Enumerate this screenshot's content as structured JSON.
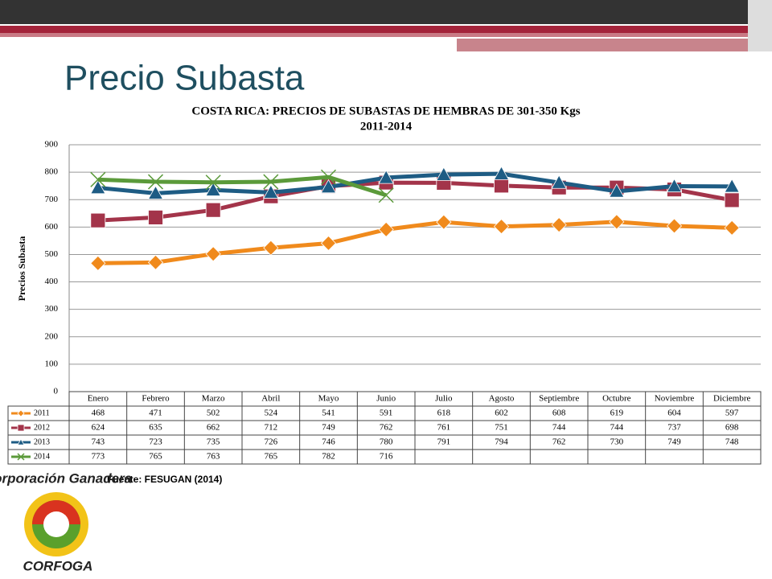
{
  "slide_title": "Precio Subasta",
  "source": "Fuente: FESUGAN (2014)",
  "logo": {
    "top": "Corporación Ganadera",
    "bottom": "CORFOGA"
  },
  "chart_data": {
    "type": "line",
    "title": "COSTA RICA: PRECIOS DE SUBASTAS DE HEMBRAS DE 301-350 Kgs",
    "subtitle": "2011-2014",
    "ylabel": "Precios Subasta",
    "categories": [
      "Enero",
      "Febrero",
      "Marzo",
      "Abril",
      "Mayo",
      "Junio",
      "Julio",
      "Agosto",
      "Septiembre",
      "Octubre",
      "Noviembre",
      "Diciembre"
    ],
    "ylim": [
      0,
      900
    ],
    "yticks": [
      0,
      100,
      200,
      300,
      400,
      500,
      600,
      700,
      800,
      900
    ],
    "grid": true,
    "series": [
      {
        "name": "2011",
        "color": "#f08a1c",
        "marker": "diamond",
        "values": [
          468,
          471,
          502,
          524,
          541,
          591,
          618,
          602,
          608,
          619,
          604,
          597
        ]
      },
      {
        "name": "2012",
        "color": "#a3344a",
        "marker": "square",
        "values": [
          624,
          635,
          662,
          712,
          749,
          762,
          761,
          751,
          744,
          744,
          737,
          698
        ]
      },
      {
        "name": "2013",
        "color": "#1e5c84",
        "marker": "triangle",
        "values": [
          743,
          723,
          735,
          726,
          746,
          780,
          791,
          794,
          762,
          730,
          749,
          748
        ]
      },
      {
        "name": "2014",
        "color": "#5b9a3a",
        "marker": "x",
        "values": [
          773,
          765,
          763,
          765,
          782,
          716,
          null,
          null,
          null,
          null,
          null,
          null
        ]
      }
    ]
  }
}
